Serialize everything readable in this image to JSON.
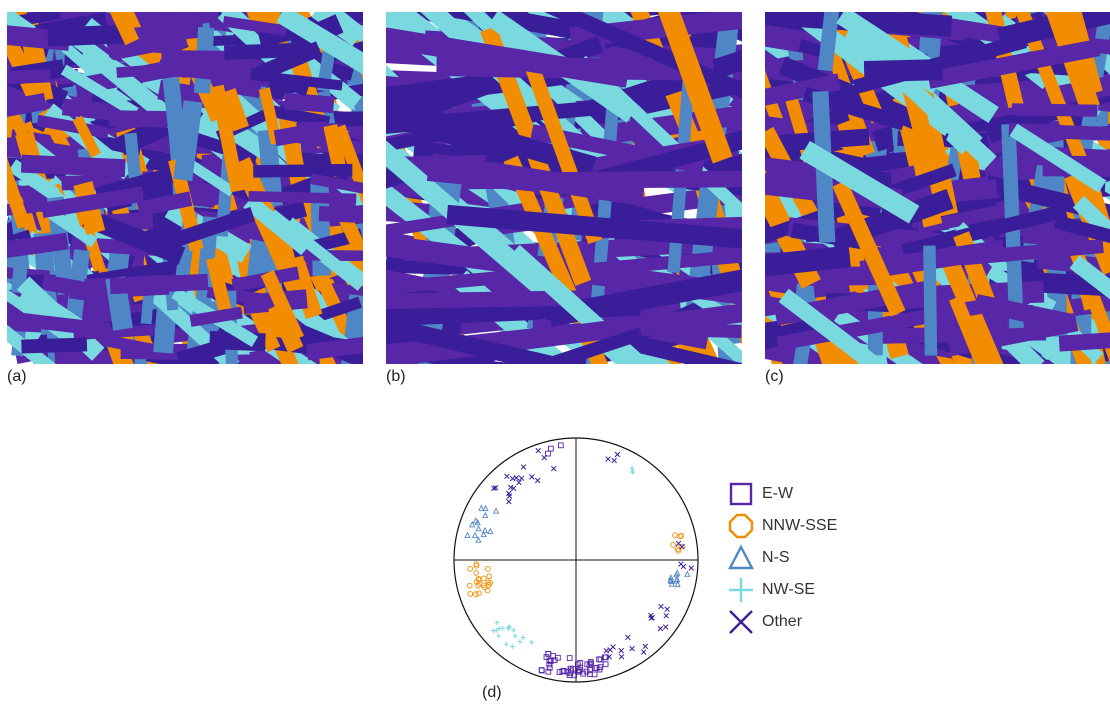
{
  "panels": [
    {
      "id": "a",
      "label": "(a)"
    },
    {
      "id": "b",
      "label": "(b)"
    },
    {
      "id": "c",
      "label": "(c)"
    }
  ],
  "stereonet_label": "(d)",
  "colors": {
    "E-W": "#5727a8",
    "NNW-SSE": "#f28c00",
    "N-S": "#4f86c6",
    "NW-SE": "#79d9df",
    "Other": "#3a1e99",
    "background": "#ffffff"
  },
  "legend": [
    {
      "key": "E-W",
      "label": "E-W",
      "symbol": "square-icon"
    },
    {
      "key": "NNW-SSE",
      "label": "NNW-SSE",
      "symbol": "octagon-icon"
    },
    {
      "key": "N-S",
      "label": "N-S",
      "symbol": "triangle-icon"
    },
    {
      "key": "NW-SE",
      "label": "NW-SE",
      "symbol": "plus-icon"
    },
    {
      "key": "Other",
      "label": "Other",
      "symbol": "cross-icon"
    }
  ]
}
